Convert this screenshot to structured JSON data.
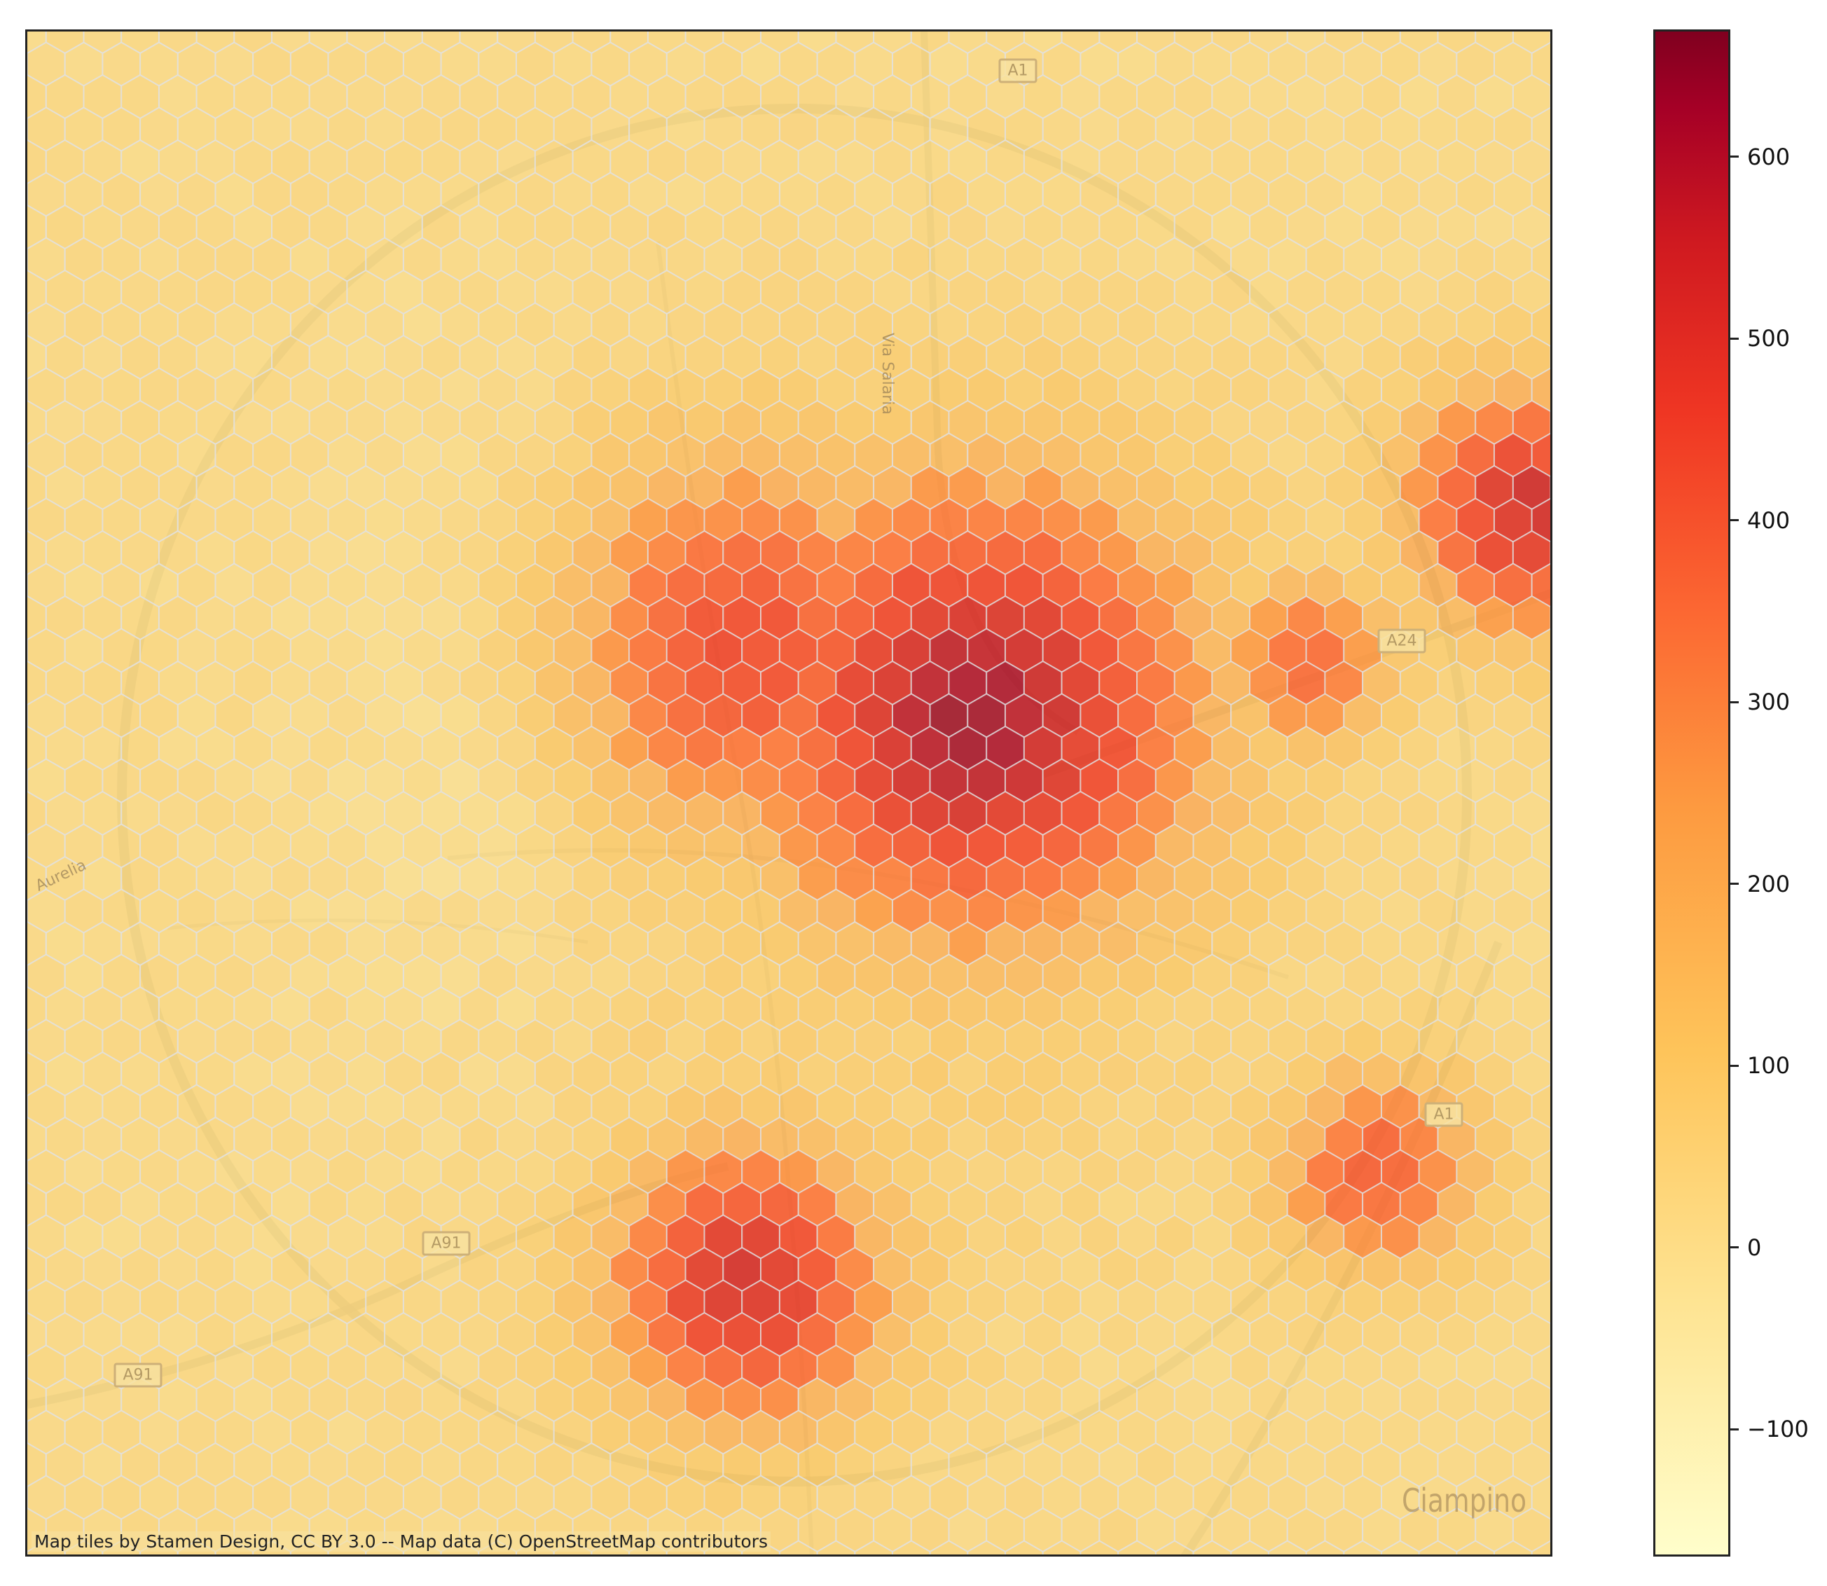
{
  "map": {
    "road_labels": [
      {
        "text": "A1"
      },
      {
        "text": "A24"
      },
      {
        "text": "A91"
      },
      {
        "text": "A91"
      },
      {
        "text": "A1"
      }
    ],
    "street_labels": [
      "Via Salaria",
      "Aurelia"
    ],
    "place_label": "Ciampino",
    "attribution": "Map tiles by Stamen Design, CC BY 3.0 -- Map data (C) OpenStreetMap contributors",
    "hex_colormap": "YlOrRd"
  },
  "colorbar": {
    "colormap": "YlOrRd",
    "range": [
      -170,
      670
    ],
    "ticks": [
      {
        "value": 600,
        "label": "600"
      },
      {
        "value": 500,
        "label": "500"
      },
      {
        "value": 400,
        "label": "400"
      },
      {
        "value": 300,
        "label": "300"
      },
      {
        "value": 200,
        "label": "200"
      },
      {
        "value": 100,
        "label": "100"
      },
      {
        "value": 0,
        "label": "0"
      },
      {
        "value": -100,
        "label": "−100"
      }
    ]
  },
  "hotspots": [
    {
      "area": "centre",
      "value": 640
    },
    {
      "area": "centre-north",
      "value": 470
    },
    {
      "area": "south",
      "value": 560
    },
    {
      "area": "east",
      "value": 560
    },
    {
      "area": "south-east",
      "value": 420
    },
    {
      "area": "east-centre",
      "value": 400
    }
  ]
}
